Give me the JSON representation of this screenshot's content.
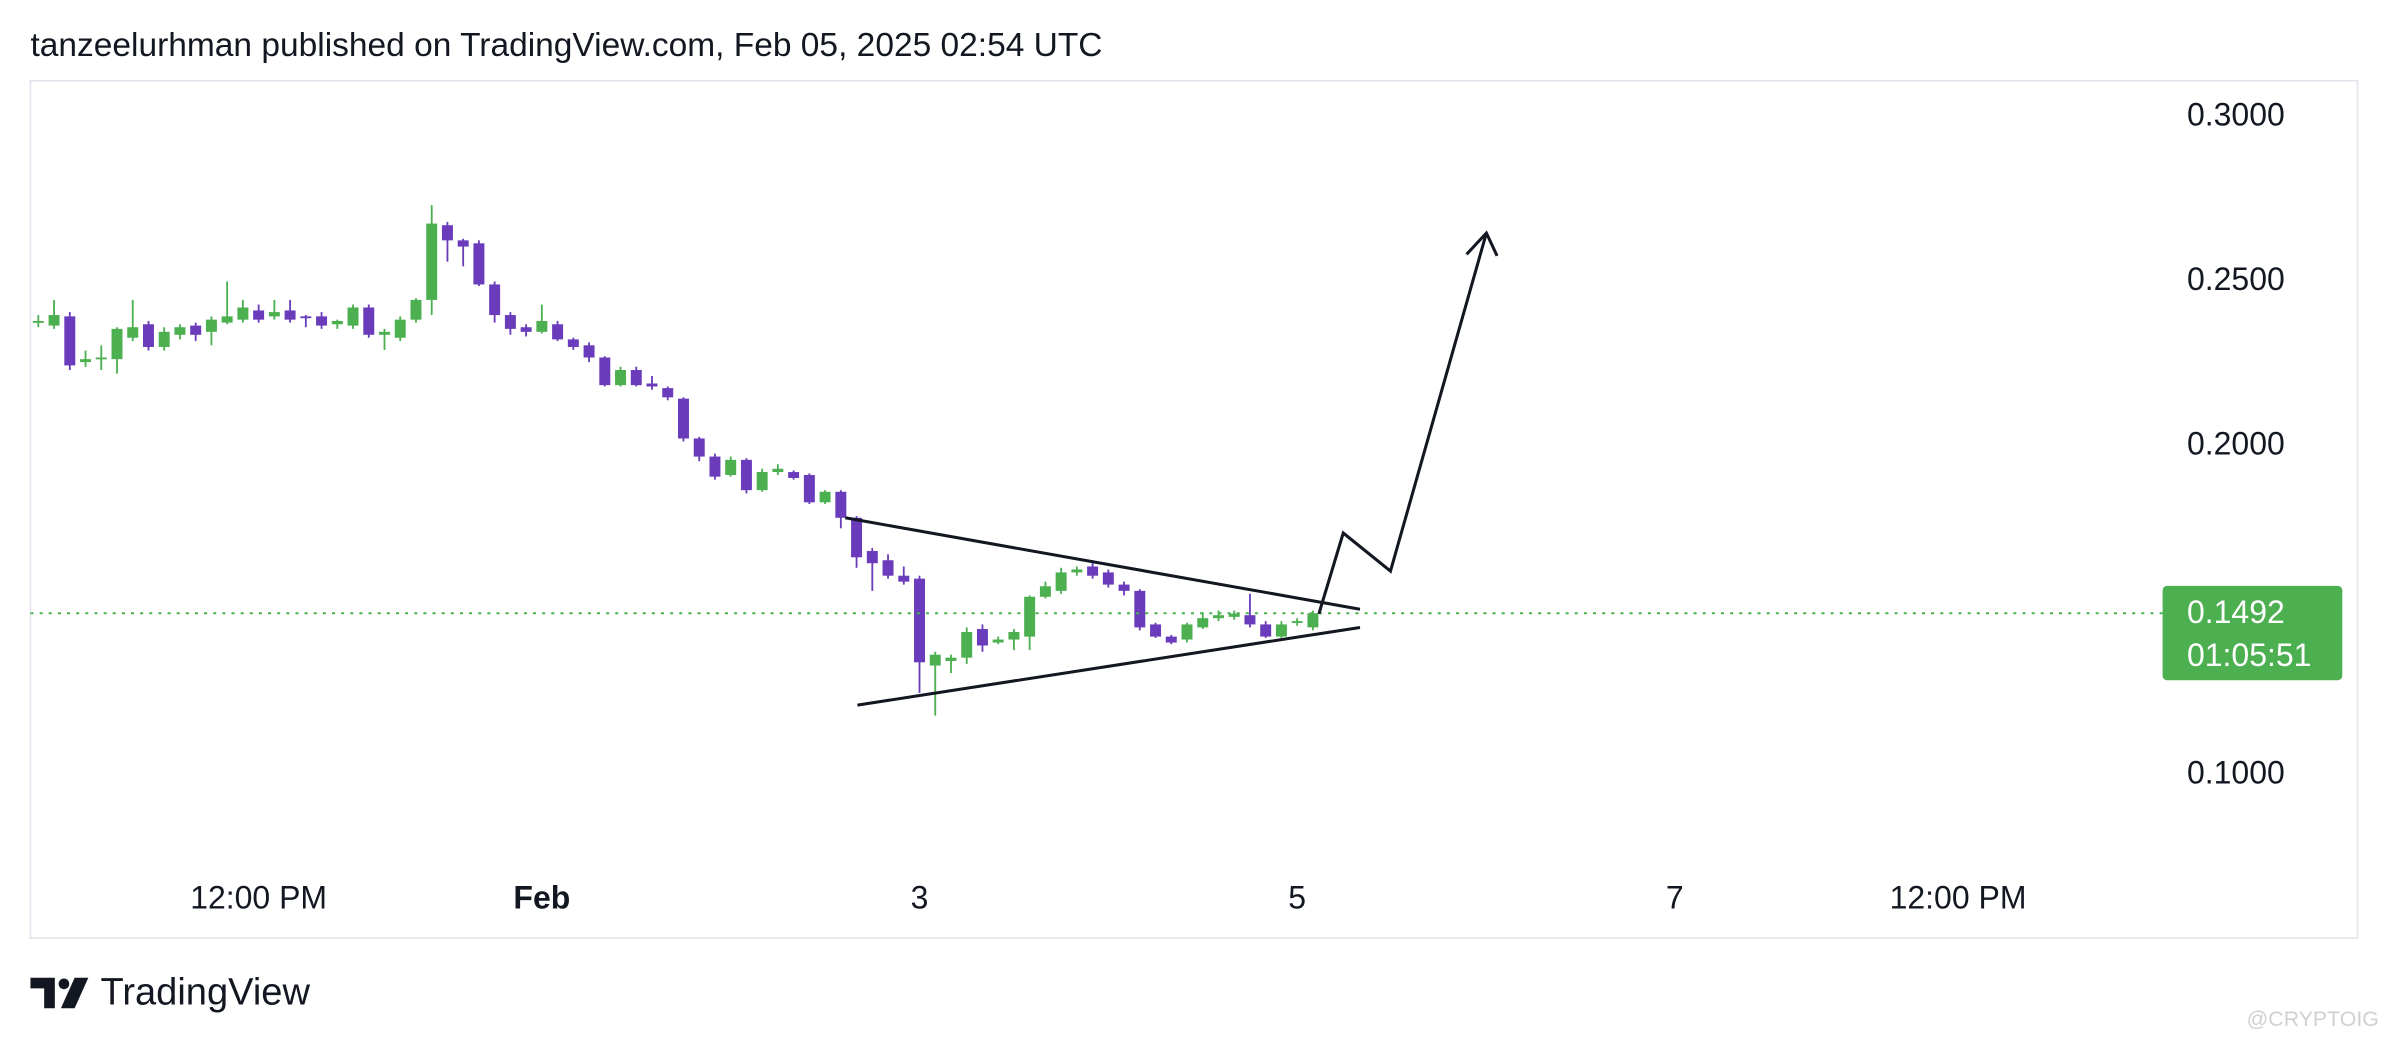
{
  "header": {
    "title": "tanzeelurhman published on TradingView.com, Feb 05, 2025 02:54 UTC"
  },
  "chart_data": {
    "type": "candlestick",
    "x": [
      -64,
      -62,
      -60,
      -58,
      -56,
      -54,
      -52,
      -50,
      -48,
      -46,
      -44,
      -42,
      -40,
      -38,
      -36,
      -34,
      -32,
      -30,
      -28,
      -26,
      -24,
      -22,
      -20,
      -18,
      -16,
      -14,
      -12,
      -10,
      -8,
      -6,
      -4,
      -2,
      0,
      2,
      4,
      6,
      8,
      10,
      12,
      14,
      16,
      18,
      20,
      22,
      24,
      26,
      28,
      30,
      32,
      34,
      36,
      38,
      40,
      42,
      44,
      46,
      48,
      50,
      52,
      54,
      56,
      58,
      60,
      62,
      64,
      66,
      68,
      70,
      72,
      74,
      76,
      78,
      80,
      82,
      84,
      86,
      88,
      90,
      92,
      94,
      96,
      98
    ],
    "open": [
      0.2375,
      0.2366,
      0.2394,
      0.2255,
      0.2264,
      0.2264,
      0.2329,
      0.237,
      0.2301,
      0.2338,
      0.2366,
      0.2347,
      0.2375,
      0.2384,
      0.2412,
      0.2394,
      0.2412,
      0.2394,
      0.2394,
      0.237,
      0.2366,
      0.2421,
      0.2338,
      0.2329,
      0.2384,
      0.2444,
      0.2671,
      0.2625,
      0.2616,
      0.2491,
      0.2398,
      0.2361,
      0.2347,
      0.237,
      0.2324,
      0.2306,
      0.2269,
      0.2185,
      0.2231,
      0.219,
      0.2176,
      0.2144,
      0.2023,
      0.1968,
      0.1912,
      0.1958,
      0.1866,
      0.1921,
      0.1921,
      0.1912,
      0.1829,
      0.1861,
      0.1782,
      0.1681,
      0.1653,
      0.1606,
      0.1597,
      0.1333,
      0.1347,
      0.1357,
      0.1444,
      0.1403,
      0.1412,
      0.1421,
      0.1542,
      0.156,
      0.1616,
      0.1634,
      0.1616,
      0.1579,
      0.156,
      0.1458,
      0.1421,
      0.1412,
      0.1449,
      0.1477,
      0.1481,
      0.1486,
      0.1458,
      0.1421,
      0.1463,
      0.1449
    ],
    "high": [
      0.2398,
      0.2444,
      0.2407,
      0.229,
      0.2306,
      0.2361,
      0.2444,
      0.238,
      0.2361,
      0.237,
      0.2375,
      0.2394,
      0.25,
      0.2444,
      0.243,
      0.2444,
      0.2444,
      0.2398,
      0.2407,
      0.2384,
      0.243,
      0.243,
      0.2356,
      0.2394,
      0.2449,
      0.2732,
      0.2681,
      0.263,
      0.2625,
      0.25,
      0.2407,
      0.237,
      0.243,
      0.238,
      0.2329,
      0.2315,
      0.2273,
      0.2241,
      0.2241,
      0.2213,
      0.2181,
      0.2148,
      0.2028,
      0.1977,
      0.1968,
      0.1963,
      0.1931,
      0.1945,
      0.1926,
      0.1917,
      0.1866,
      0.1866,
      0.1787,
      0.169,
      0.1671,
      0.1634,
      0.1606,
      0.1375,
      0.1366,
      0.1449,
      0.1458,
      0.1421,
      0.1444,
      0.1546,
      0.1588,
      0.163,
      0.1634,
      0.1653,
      0.1625,
      0.1588,
      0.1565,
      0.1463,
      0.1426,
      0.1463,
      0.1495,
      0.15,
      0.15,
      0.1551,
      0.1468,
      0.1468,
      0.1477,
      0.15
    ],
    "low": [
      0.2361,
      0.2356,
      0.2231,
      0.224,
      0.2231,
      0.222,
      0.2319,
      0.229,
      0.229,
      0.2324,
      0.2319,
      0.2306,
      0.237,
      0.2375,
      0.2375,
      0.2384,
      0.2375,
      0.2361,
      0.2356,
      0.2356,
      0.2356,
      0.2329,
      0.2292,
      0.2319,
      0.2375,
      0.2398,
      0.256,
      0.2546,
      0.2486,
      0.2375,
      0.2338,
      0.2333,
      0.2342,
      0.2319,
      0.2292,
      0.2255,
      0.2181,
      0.2181,
      0.2181,
      0.2171,
      0.2139,
      0.2014,
      0.1954,
      0.1898,
      0.1907,
      0.1856,
      0.1861,
      0.1912,
      0.1898,
      0.1824,
      0.1824,
      0.175,
      0.163,
      0.156,
      0.1597,
      0.1579,
      0.125,
      0.1181,
      0.131,
      0.1338,
      0.1375,
      0.1398,
      0.138,
      0.138,
      0.1537,
      0.1551,
      0.1606,
      0.1597,
      0.157,
      0.1546,
      0.144,
      0.1417,
      0.1398,
      0.1403,
      0.1444,
      0.1468,
      0.1472,
      0.1449,
      0.1417,
      0.1417,
      0.1454,
      0.144
    ],
    "close": [
      0.238,
      0.2398,
      0.2245,
      0.2264,
      0.2269,
      0.2356,
      0.2361,
      0.2301,
      0.2347,
      0.2361,
      0.2338,
      0.2384,
      0.2394,
      0.2421,
      0.2384,
      0.2407,
      0.2384,
      0.2389,
      0.2366,
      0.238,
      0.2421,
      0.2338,
      0.2347,
      0.2384,
      0.2444,
      0.2676,
      0.2625,
      0.2606,
      0.2491,
      0.2398,
      0.2356,
      0.2347,
      0.238,
      0.2324,
      0.2301,
      0.2269,
      0.2185,
      0.2231,
      0.2185,
      0.2181,
      0.2148,
      0.2023,
      0.1968,
      0.1907,
      0.1958,
      0.1866,
      0.1921,
      0.1931,
      0.1903,
      0.1829,
      0.1861,
      0.1782,
      0.1662,
      0.1644,
      0.1606,
      0.1588,
      0.1343,
      0.1366,
      0.1357,
      0.1435,
      0.1394,
      0.1412,
      0.1435,
      0.1542,
      0.1574,
      0.1616,
      0.1625,
      0.1606,
      0.1579,
      0.156,
      0.1449,
      0.1421,
      0.1403,
      0.1458,
      0.1477,
      0.1486,
      0.1491,
      0.1458,
      0.1421,
      0.1458,
      0.1468,
      0.1492
    ],
    "up_color": "#4caf50",
    "down_color": "#6a3cbc",
    "xlim": [
      -65,
      206
    ],
    "xticks": [
      {
        "value": -36,
        "label": "12:00 PM"
      },
      {
        "value": 0,
        "label": "Feb"
      },
      {
        "value": 48,
        "label": "3"
      },
      {
        "value": 96,
        "label": "5"
      },
      {
        "value": 144,
        "label": "7"
      },
      {
        "value": 180,
        "label": "12:00 PM"
      }
    ],
    "ylim": [
      0.075,
      0.311
    ],
    "yticks": [
      {
        "value": 0.1,
        "label": "0.1000"
      },
      {
        "value": 0.2,
        "label": "0.2000"
      },
      {
        "value": 0.25,
        "label": "0.2500"
      },
      {
        "value": 0.3,
        "label": "0.3000"
      }
    ],
    "countdown": "01:05:51",
    "grid": false
  },
  "footer": {
    "brand": "TradingView",
    "watermark": "@CRYPTOIG"
  }
}
